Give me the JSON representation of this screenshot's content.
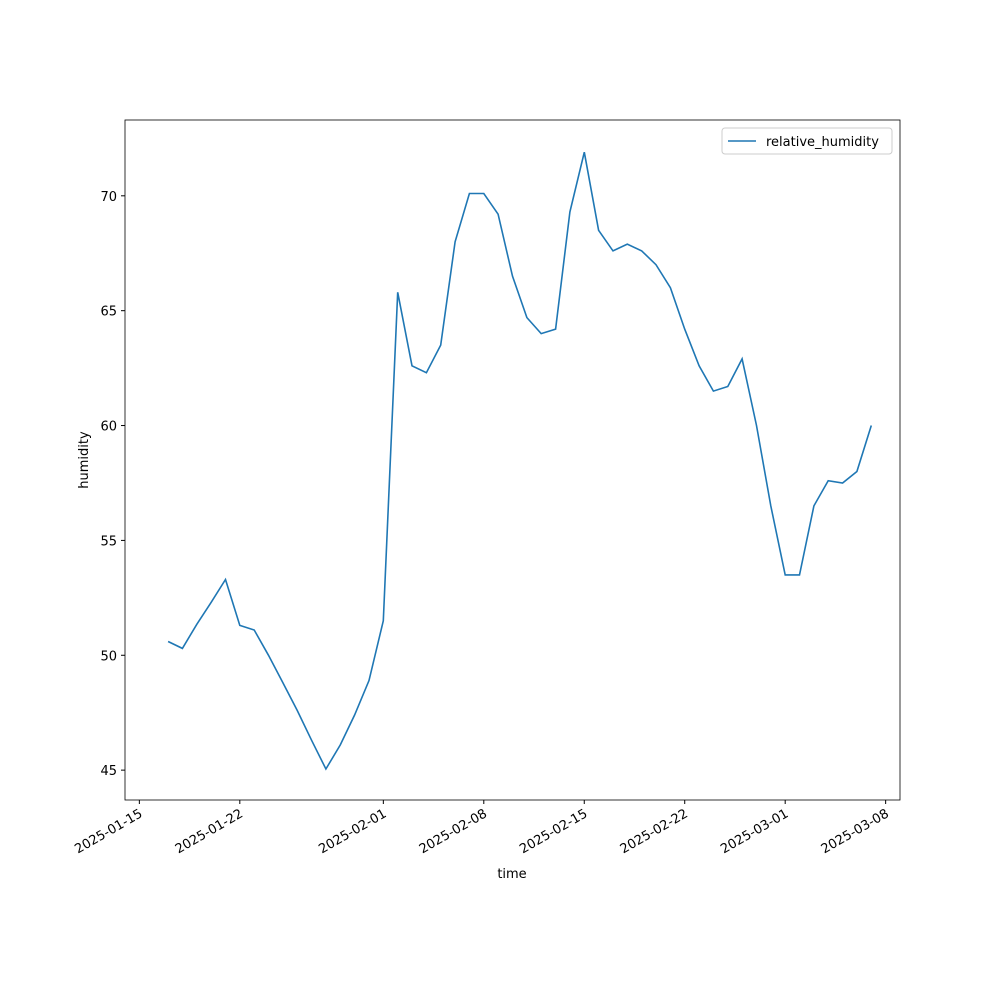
{
  "chart_data": {
    "type": "line",
    "xlabel": "time",
    "ylabel": "humidity",
    "x": [
      "2025-01-17",
      "2025-01-18",
      "2025-01-19",
      "2025-01-20",
      "2025-01-21",
      "2025-01-22",
      "2025-01-23",
      "2025-01-24",
      "2025-01-25",
      "2025-01-26",
      "2025-01-27",
      "2025-01-28",
      "2025-01-29",
      "2025-01-30",
      "2025-01-31",
      "2025-02-01",
      "2025-02-02",
      "2025-02-03",
      "2025-02-04",
      "2025-02-05",
      "2025-02-06",
      "2025-02-07",
      "2025-02-08",
      "2025-02-09",
      "2025-02-10",
      "2025-02-11",
      "2025-02-12",
      "2025-02-13",
      "2025-02-14",
      "2025-02-15",
      "2025-02-16",
      "2025-02-17",
      "2025-02-18",
      "2025-02-19",
      "2025-02-20",
      "2025-02-21",
      "2025-02-22",
      "2025-02-23",
      "2025-02-24",
      "2025-02-25",
      "2025-02-26",
      "2025-02-27",
      "2025-02-28",
      "2025-03-01",
      "2025-03-02",
      "2025-03-03",
      "2025-03-04",
      "2025-03-05",
      "2025-03-06",
      "2025-03-07"
    ],
    "series": [
      {
        "name": "relative_humidity",
        "color": "#1f77b4",
        "values": [
          50.6,
          50.3,
          51.35,
          52.3,
          53.3,
          51.3,
          51.1,
          50.0,
          48.8,
          47.6,
          46.3,
          45.05,
          46.1,
          47.4,
          48.9,
          51.5,
          65.8,
          62.6,
          62.3,
          63.5,
          68.0,
          70.1,
          70.1,
          69.2,
          66.5,
          64.7,
          64.0,
          64.2,
          69.3,
          71.9,
          68.5,
          67.6,
          67.9,
          67.6,
          67.0,
          66.0,
          64.2,
          62.6,
          61.5,
          61.7,
          62.9,
          60.0,
          56.5,
          53.5,
          53.5,
          56.5,
          57.6,
          57.5,
          58.0,
          60.0
        ]
      }
    ],
    "xlim": [
      "2025-01-14",
      "2025-03-09"
    ],
    "xticks": [
      "2025-01-15",
      "2025-01-22",
      "2025-02-01",
      "2025-02-08",
      "2025-02-15",
      "2025-02-22",
      "2025-03-01",
      "2025-03-08"
    ],
    "ylim": [
      43.7,
      73.3
    ],
    "yticks": [
      45,
      50,
      55,
      60,
      65,
      70
    ],
    "legend": "upper right"
  }
}
